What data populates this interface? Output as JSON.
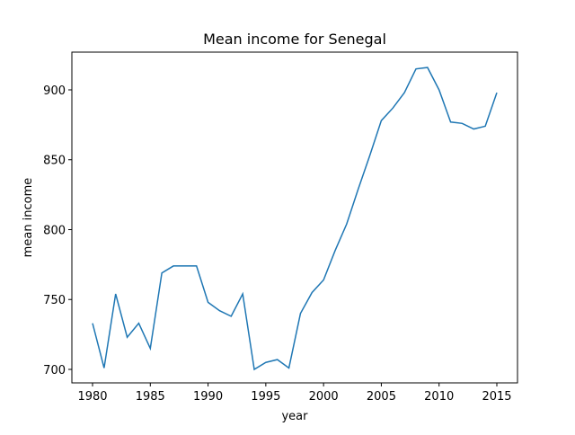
{
  "chart_data": {
    "type": "line",
    "title": "Mean income for Senegal",
    "x_label": "year",
    "y_label": "mean income",
    "x": [
      1980,
      1981,
      1982,
      1983,
      1984,
      1985,
      1986,
      1987,
      1988,
      1989,
      1990,
      1991,
      1992,
      1993,
      1994,
      1995,
      1996,
      1997,
      1998,
      1999,
      2000,
      2001,
      2002,
      2003,
      2004,
      2005,
      2006,
      2007,
      2008,
      2009,
      2010,
      2011,
      2012,
      2013,
      2014,
      2015
    ],
    "series": [
      {
        "name": "mean income",
        "color": "#1f77b4",
        "values": [
          733,
          701,
          754,
          723,
          733,
          715,
          769,
          774,
          774,
          774,
          748,
          742,
          738,
          754,
          700,
          705,
          707,
          701,
          740,
          755,
          764,
          785,
          804,
          829,
          853,
          878,
          887,
          898,
          915,
          916,
          900,
          877,
          876,
          872,
          874,
          898
        ]
      }
    ],
    "xlim": [
      1978.21,
      2016.79
    ],
    "xticks": [
      1980,
      1985,
      1990,
      1995,
      2000,
      2005,
      2010,
      2015
    ],
    "ylim": [
      690.35,
      927.0
    ],
    "yticks": [
      700,
      750,
      800,
      850,
      900
    ],
    "grid": false
  }
}
